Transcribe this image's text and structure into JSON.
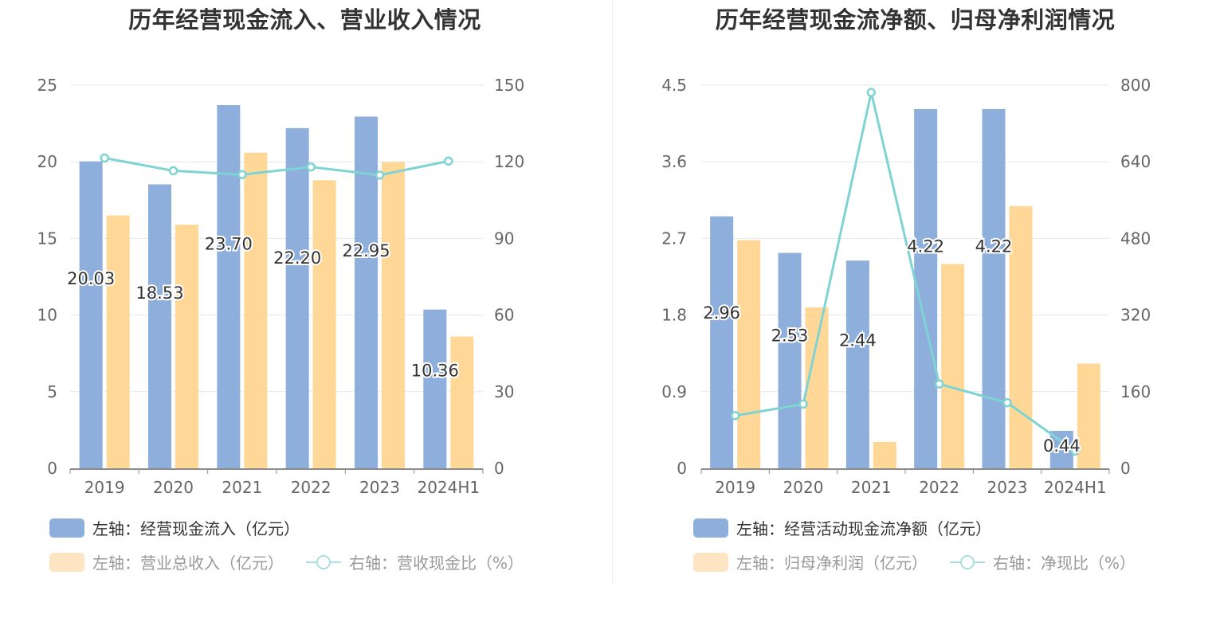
{
  "charts": [
    {
      "title": "历年经营现金流入、营业收入情况",
      "legend": [
        {
          "label": "左轴：经营现金流入（亿元）",
          "kind": "bar",
          "color": "#8eaedb",
          "active": true
        },
        {
          "label": "左轴：营业总收入（亿元）",
          "kind": "bar",
          "color": "#fde5c3",
          "active": false
        },
        {
          "label": "右轴：营收现金比（%）",
          "kind": "line",
          "color": "#a9dfe0",
          "active": false
        }
      ]
    },
    {
      "title": "历年经营现金流净额、归母净利润情况",
      "legend": [
        {
          "label": "左轴：经营活动现金流净额（亿元）",
          "kind": "bar",
          "color": "#8eaedb",
          "active": true
        },
        {
          "label": "左轴：归母净利润（亿元）",
          "kind": "bar",
          "color": "#fde5c3",
          "active": false
        },
        {
          "label": "右轴：净现比（%）",
          "kind": "line",
          "color": "#a9dfe0",
          "active": false
        }
      ]
    }
  ],
  "chart_data": [
    {
      "type": "bar",
      "title": "历年经营现金流入、营业收入情况",
      "categories": [
        "2019",
        "2020",
        "2021",
        "2022",
        "2023",
        "2024H1"
      ],
      "left_axis": {
        "min": 0,
        "max": 25,
        "ticks": [
          "0",
          "5",
          "10",
          "15",
          "20",
          "25"
        ]
      },
      "right_axis": {
        "min": 0,
        "max": 150,
        "ticks": [
          "0",
          "30",
          "60",
          "90",
          "120",
          "150"
        ]
      },
      "series": [
        {
          "name": "左轴：经营现金流入（亿元）",
          "type": "bar",
          "axis": "left",
          "color": "#8eaedb",
          "values": [
            20.03,
            18.53,
            23.7,
            22.2,
            22.95,
            10.36
          ],
          "labels": [
            "20.03",
            "18.53",
            "23.70",
            "22.20",
            "22.95",
            "10.36"
          ]
        },
        {
          "name": "左轴：营业总收入（亿元）",
          "type": "bar",
          "axis": "left",
          "color": "#ffd898",
          "values": [
            16.5,
            15.9,
            20.6,
            18.8,
            20.0,
            8.6
          ]
        },
        {
          "name": "右轴：营收现金比（%）",
          "type": "line",
          "axis": "right",
          "color": "#7fd3d3",
          "values": [
            121.5,
            116.5,
            115.0,
            118.0,
            114.8,
            120.3
          ]
        }
      ],
      "grid": true,
      "legend_position": "bottom-left"
    },
    {
      "type": "bar",
      "title": "历年经营现金流净额、归母净利润情况",
      "categories": [
        "2019",
        "2020",
        "2021",
        "2022",
        "2023",
        "2024H1"
      ],
      "left_axis": {
        "min": 0,
        "max": 4.5,
        "ticks": [
          "0",
          "0.9",
          "1.8",
          "2.7",
          "3.6",
          "4.5"
        ]
      },
      "right_axis": {
        "min": 0,
        "max": 800,
        "ticks": [
          "0",
          "160",
          "320",
          "480",
          "640",
          "800"
        ]
      },
      "series": [
        {
          "name": "左轴：经营活动现金流净额（亿元）",
          "type": "bar",
          "axis": "left",
          "color": "#8eaedb",
          "values": [
            2.96,
            2.53,
            2.44,
            4.22,
            4.22,
            0.44
          ],
          "labels": [
            "2.96",
            "2.53",
            "2.44",
            "4.22",
            "4.22",
            "0.44"
          ]
        },
        {
          "name": "左轴：归母净利润（亿元）",
          "type": "bar",
          "axis": "left",
          "color": "#ffd898",
          "values": [
            2.68,
            1.89,
            0.31,
            2.4,
            3.08,
            1.23
          ]
        },
        {
          "name": "右轴：净现比（%）",
          "type": "line",
          "axis": "right",
          "color": "#7fd3d3",
          "values": [
            110,
            134,
            785,
            176,
            137,
            36
          ]
        }
      ],
      "grid": true,
      "legend_position": "bottom-left"
    }
  ]
}
